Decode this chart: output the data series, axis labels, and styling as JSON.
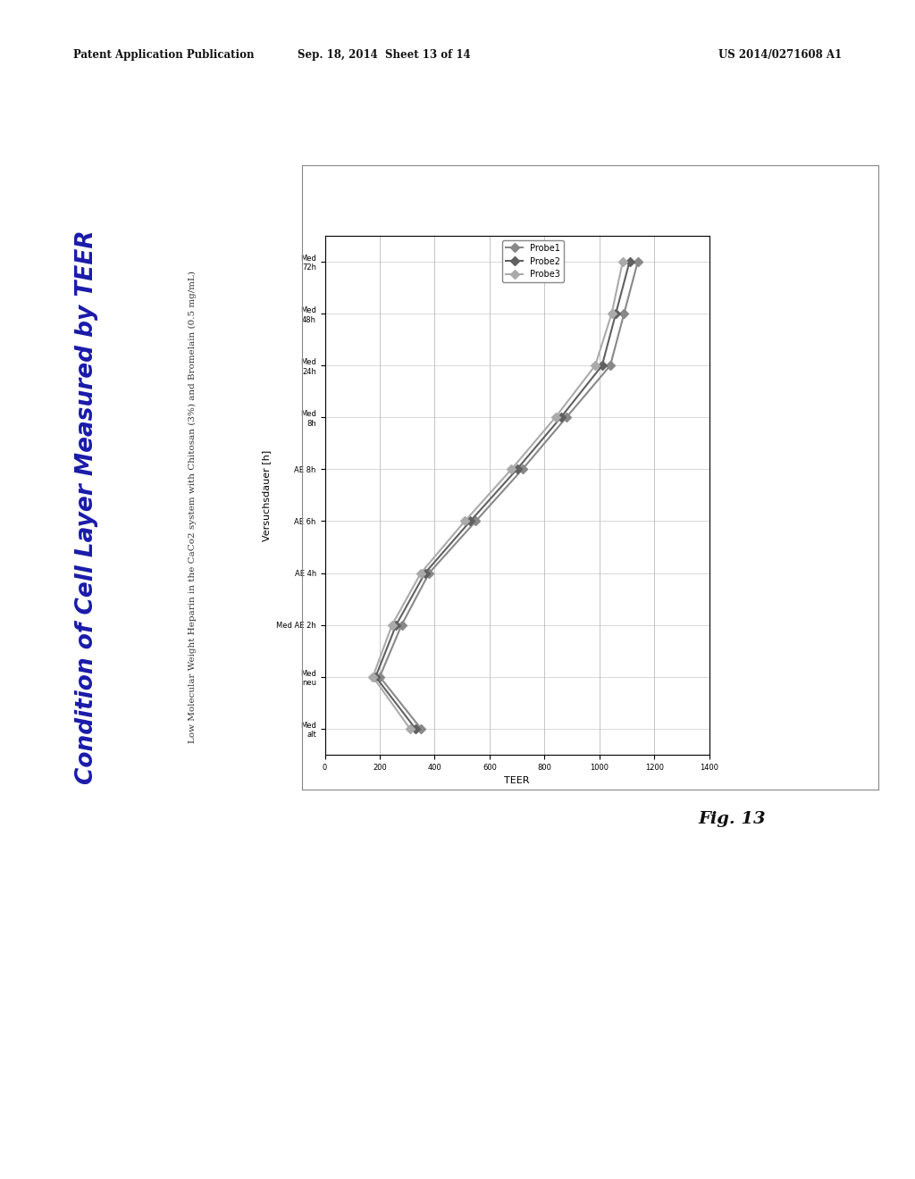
{
  "page_header_left": "Patent Application Publication",
  "page_header_mid": "Sep. 18, 2014  Sheet 13 of 14",
  "page_header_right": "US 2014/0271608 A1",
  "main_title": "Condition of Cell Layer Measured by TEER",
  "subtitle": "Low Molecular Weight Heparin in the CaCo2 system with Chitosan (3%) and Bromelain (0.5 mg/mL)",
  "fig_label": "Fig. 13",
  "xlabel": "TEER",
  "ylabel": "Versuchsdauer [h]",
  "y_labels": [
    "Med\nalt",
    "Med\nneu",
    "Med AE 2h",
    "AE 4h",
    "AE 6h",
    "AE 8h",
    "Med\n8h",
    "Med\n24h",
    "Med\n48h",
    "Med\n72h"
  ],
  "xlim": [
    0,
    1400
  ],
  "xticks": [
    0,
    200,
    400,
    600,
    800,
    1000,
    1200,
    1400
  ],
  "series": [
    {
      "name": "Probe1",
      "color": "#888888",
      "marker": "D",
      "values": [
        350,
        200,
        280,
        380,
        550,
        720,
        880,
        1040,
        1090,
        1140
      ]
    },
    {
      "name": "Probe2",
      "color": "#606060",
      "marker": "D",
      "values": [
        330,
        185,
        260,
        365,
        530,
        700,
        860,
        1010,
        1060,
        1110
      ]
    },
    {
      "name": "Probe3",
      "color": "#aaaaaa",
      "marker": "D",
      "values": [
        310,
        175,
        245,
        350,
        510,
        680,
        840,
        985,
        1045,
        1085
      ]
    }
  ],
  "background_color": "#ffffff",
  "plot_bg_color": "#ffffff",
  "border_color": "#000000",
  "title_color": "#1a1aaa",
  "header_color": "#111111"
}
